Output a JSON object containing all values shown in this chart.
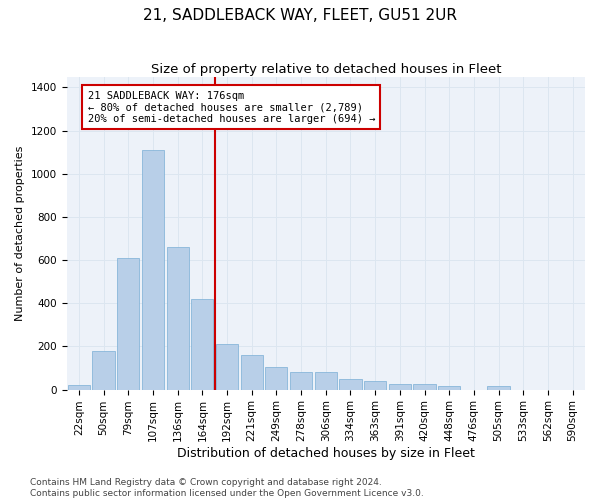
{
  "title": "21, SADDLEBACK WAY, FLEET, GU51 2UR",
  "subtitle": "Size of property relative to detached houses in Fleet",
  "xlabel": "Distribution of detached houses by size in Fleet",
  "ylabel": "Number of detached properties",
  "categories": [
    "22sqm",
    "50sqm",
    "79sqm",
    "107sqm",
    "136sqm",
    "164sqm",
    "192sqm",
    "221sqm",
    "249sqm",
    "278sqm",
    "306sqm",
    "334sqm",
    "363sqm",
    "391sqm",
    "420sqm",
    "448sqm",
    "476sqm",
    "505sqm",
    "533sqm",
    "562sqm",
    "590sqm"
  ],
  "values": [
    20,
    180,
    610,
    1110,
    660,
    420,
    210,
    160,
    105,
    80,
    80,
    50,
    40,
    25,
    25,
    15,
    0,
    15,
    0,
    0,
    0
  ],
  "bar_color": "#b8cfe8",
  "bar_edge_color": "#7aaed6",
  "annotation_label": "21 SADDLEBACK WAY: 176sqm",
  "annotation_line1": "← 80% of detached houses are smaller (2,789)",
  "annotation_line2": "20% of semi-detached houses are larger (694) →",
  "annotation_box_color": "#ffffff",
  "annotation_box_edge": "#cc0000",
  "vline_color": "#cc0000",
  "vline_x": 5.5,
  "grid_color": "#dce6f0",
  "background_color": "#edf2f9",
  "footer1": "Contains HM Land Registry data © Crown copyright and database right 2024.",
  "footer2": "Contains public sector information licensed under the Open Government Licence v3.0.",
  "ylim": [
    0,
    1450
  ],
  "yticks": [
    0,
    200,
    400,
    600,
    800,
    1000,
    1200,
    1400
  ],
  "title_fontsize": 11,
  "subtitle_fontsize": 9.5,
  "xlabel_fontsize": 9,
  "ylabel_fontsize": 8,
  "tick_fontsize": 7.5,
  "annot_fontsize": 7.5,
  "footer_fontsize": 6.5
}
